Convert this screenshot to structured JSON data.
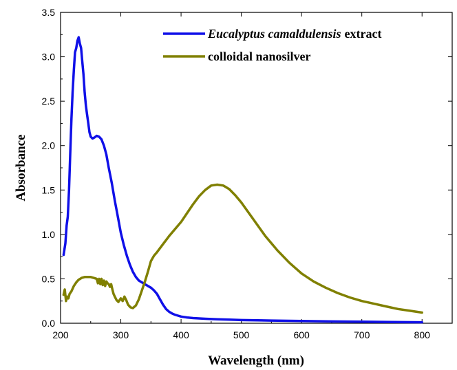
{
  "chart_data": {
    "type": "line",
    "xlabel": "Wavelength (nm)",
    "ylabel": "Absorbance",
    "xlim": [
      200,
      850
    ],
    "ylim": [
      0,
      3.5
    ],
    "xticks": [
      200,
      300,
      400,
      500,
      600,
      700,
      800
    ],
    "xtick_labels": [
      "200",
      "300",
      "400",
      "500",
      "600",
      "700",
      "800"
    ],
    "yticks": [
      0,
      0.5,
      1.0,
      1.5,
      2.0,
      2.5,
      3.0,
      3.5
    ],
    "ytick_labels": [
      "0.0",
      "0.5",
      "1.0",
      "1.5",
      "2.0",
      "2.5",
      "3.0",
      "3.5"
    ],
    "grid": false,
    "legend_position": "top-right",
    "series": [
      {
        "name": "Eucalyptus camaldulensis extract",
        "legend_italic": "Eucalyptus camaldulensis",
        "legend_rest": "extract",
        "color": "#1010e8",
        "x": [
          205,
          208,
          210,
          212,
          214,
          216,
          218,
          220,
          222,
          224,
          226,
          228,
          230,
          232,
          234,
          236,
          238,
          240,
          242,
          244,
          246,
          248,
          250,
          253,
          256,
          260,
          264,
          268,
          272,
          276,
          280,
          285,
          290,
          295,
          300,
          305,
          310,
          315,
          320,
          325,
          330,
          335,
          340,
          345,
          350,
          355,
          360,
          365,
          370,
          375,
          380,
          385,
          390,
          395,
          400,
          410,
          420,
          440,
          460,
          480,
          500,
          550,
          600,
          650,
          700,
          750,
          800
        ],
        "y": [
          0.77,
          0.9,
          1.1,
          1.2,
          1.5,
          1.9,
          2.3,
          2.6,
          2.85,
          3.05,
          3.1,
          3.18,
          3.22,
          3.15,
          3.1,
          2.95,
          2.8,
          2.6,
          2.45,
          2.35,
          2.25,
          2.15,
          2.1,
          2.08,
          2.09,
          2.11,
          2.1,
          2.07,
          2.0,
          1.9,
          1.75,
          1.58,
          1.38,
          1.2,
          1.02,
          0.88,
          0.76,
          0.66,
          0.58,
          0.52,
          0.48,
          0.46,
          0.44,
          0.42,
          0.4,
          0.37,
          0.33,
          0.27,
          0.21,
          0.16,
          0.13,
          0.11,
          0.095,
          0.085,
          0.075,
          0.065,
          0.058,
          0.05,
          0.045,
          0.04,
          0.036,
          0.03,
          0.025,
          0.02,
          0.017,
          0.014,
          0.011
        ]
      },
      {
        "name": "colloidal nanosilver",
        "color": "#808000",
        "x": [
          205,
          207,
          209,
          211,
          213,
          215,
          218,
          222,
          226,
          230,
          235,
          240,
          245,
          250,
          255,
          260,
          262,
          264,
          266,
          268,
          270,
          272,
          274,
          276,
          278,
          280,
          282,
          284,
          286,
          288,
          290,
          293,
          296,
          300,
          303,
          306,
          309,
          312,
          316,
          320,
          325,
          330,
          335,
          340,
          345,
          350,
          355,
          360,
          370,
          380,
          390,
          400,
          410,
          420,
          430,
          440,
          450,
          460,
          470,
          480,
          490,
          500,
          520,
          540,
          560,
          580,
          600,
          620,
          640,
          660,
          680,
          700,
          720,
          740,
          760,
          780,
          800
        ],
        "y": [
          0.32,
          0.38,
          0.25,
          0.3,
          0.28,
          0.33,
          0.36,
          0.42,
          0.46,
          0.49,
          0.51,
          0.52,
          0.52,
          0.52,
          0.51,
          0.5,
          0.45,
          0.5,
          0.44,
          0.5,
          0.43,
          0.48,
          0.42,
          0.47,
          0.45,
          0.44,
          0.41,
          0.44,
          0.38,
          0.33,
          0.3,
          0.26,
          0.24,
          0.28,
          0.25,
          0.3,
          0.26,
          0.21,
          0.18,
          0.17,
          0.2,
          0.27,
          0.37,
          0.47,
          0.58,
          0.7,
          0.76,
          0.8,
          0.89,
          0.98,
          1.06,
          1.14,
          1.24,
          1.34,
          1.43,
          1.5,
          1.55,
          1.56,
          1.55,
          1.51,
          1.44,
          1.36,
          1.17,
          0.98,
          0.82,
          0.68,
          0.56,
          0.47,
          0.4,
          0.34,
          0.29,
          0.25,
          0.22,
          0.19,
          0.16,
          0.14,
          0.12
        ]
      }
    ]
  }
}
